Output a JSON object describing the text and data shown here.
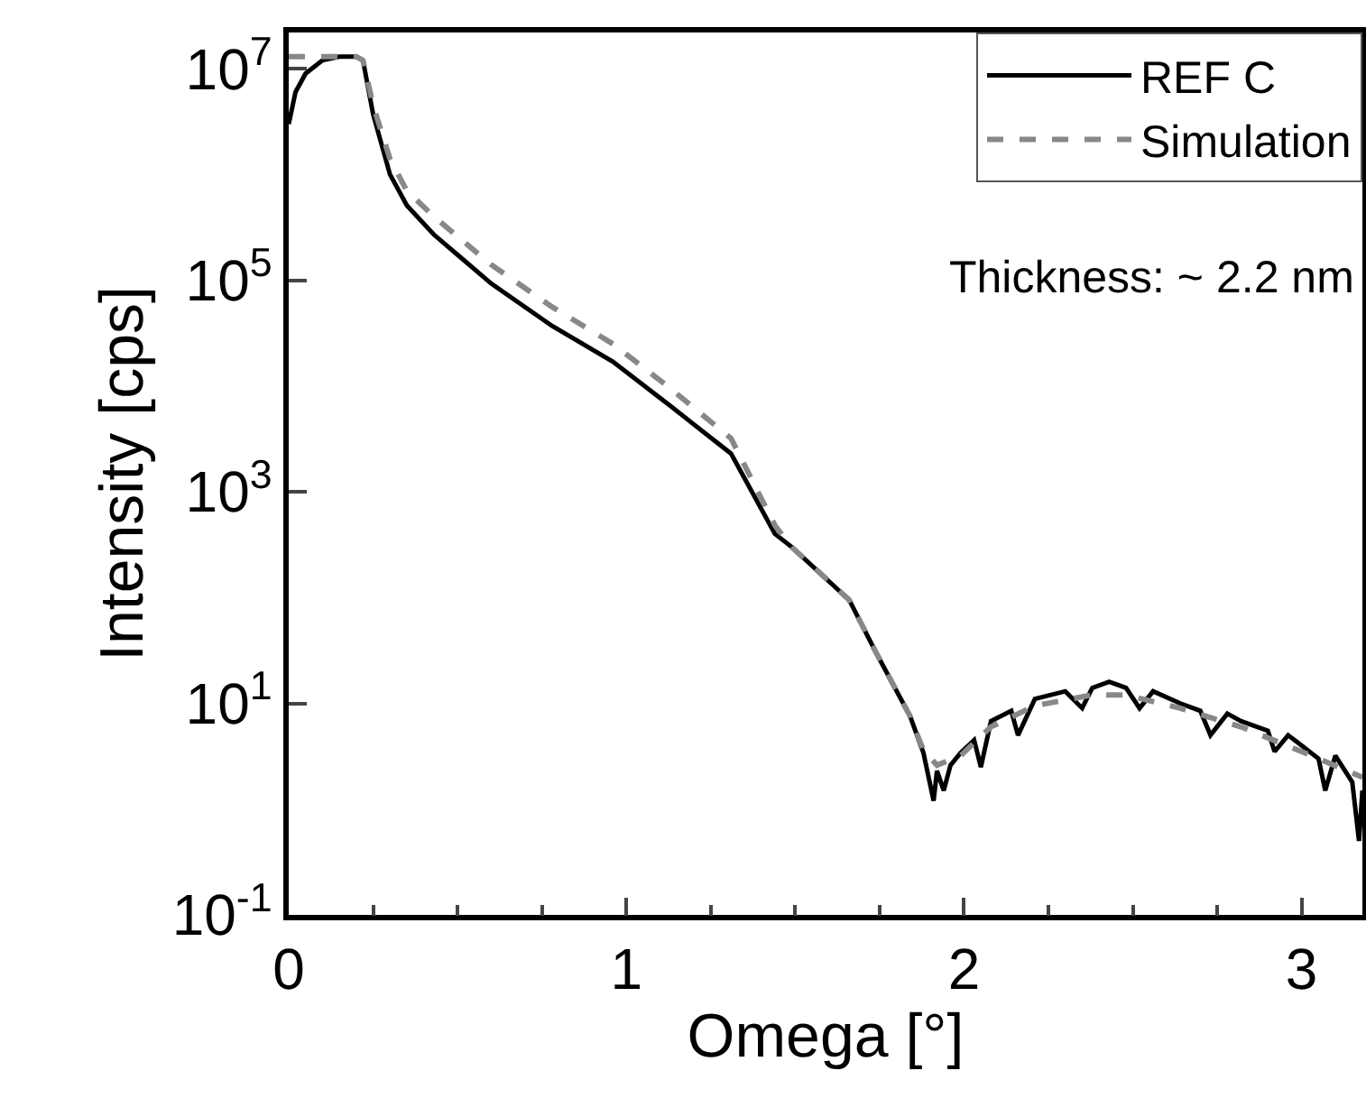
{
  "chart_data": {
    "type": "line",
    "xlabel": "Omega [°]",
    "ylabel": "Intensity [cps]",
    "log": "y",
    "legend": "top right",
    "grid": false,
    "xlim": [
      0,
      3.18
    ],
    "xticks": [
      0,
      1,
      2,
      3
    ],
    "ylim": [
      0.1,
      22000000
    ],
    "yticks": [
      {
        "value": 0.1,
        "label": "10$^{-1}$"
      },
      {
        "value": 10,
        "label": "10$^{1}$"
      },
      {
        "value": 1000,
        "label": "10$^{3}$"
      },
      {
        "value": 100000,
        "label": "10$^{5}$"
      },
      {
        "value": 10000000,
        "label": "10$^{7}$"
      }
    ],
    "annotations": [
      "Thickness: ~ 2.2 nm"
    ],
    "series": [
      {
        "name": "REF C",
        "color": "#000000",
        "line_style": "solid",
        "x": [
          0,
          0.02,
          0.05,
          0.1,
          0.15,
          0.2,
          0.22,
          0.25,
          0.3,
          0.35,
          0.43,
          0.6,
          0.78,
          0.96,
          1.13,
          1.31,
          1.44,
          1.49,
          1.66,
          1.74,
          1.84,
          1.88,
          1.91,
          1.92,
          1.94,
          1.96,
          1.99,
          2.03,
          2.05,
          2.08,
          2.14,
          2.16,
          2.21,
          2.3,
          2.35,
          2.38,
          2.43,
          2.48,
          2.52,
          2.56,
          2.64,
          2.7,
          2.73,
          2.78,
          2.82,
          2.9,
          2.92,
          2.96,
          3.0,
          3.05,
          3.07,
          3.1,
          3.15,
          3.17,
          3.18
        ],
        "values": [
          3000000,
          6000000,
          9000000,
          12000000,
          13000000,
          13000000,
          12000000,
          3700000,
          1000000,
          510000,
          270000,
          93000,
          37000,
          17000,
          6500,
          2300,
          400,
          300,
          95,
          30,
          7.6,
          3.4,
          1.2,
          2.3,
          1.5,
          2.6,
          3.4,
          4.5,
          2.5,
          6.8,
          8.5,
          5,
          11,
          13,
          9,
          14,
          16,
          14,
          9,
          13,
          10,
          8.5,
          5,
          8,
          6.8,
          5.5,
          3.5,
          5,
          4,
          3,
          1.5,
          3.2,
          1.8,
          0.5,
          1.5
        ]
      },
      {
        "name": "Simulation",
        "color": "#888888",
        "line_style": "dashed",
        "x": [
          0,
          0.2,
          0.22,
          0.25,
          0.3,
          0.35,
          0.43,
          0.6,
          0.78,
          0.96,
          1.13,
          1.31,
          1.44,
          1.49,
          1.66,
          1.74,
          1.84,
          1.88,
          1.92,
          1.99,
          2.08,
          2.21,
          2.38,
          2.48,
          2.64,
          2.82,
          3.0,
          3.18
        ],
        "values": [
          13000000,
          13000000,
          12000000,
          4500000,
          1400000,
          700000,
          400000,
          140000,
          56000,
          25000,
          9500,
          3200,
          480,
          300,
          95,
          30,
          7.6,
          3.6,
          2.6,
          3.2,
          6,
          9.5,
          12,
          12,
          9,
          6,
          3.5,
          2
        ]
      }
    ]
  }
}
